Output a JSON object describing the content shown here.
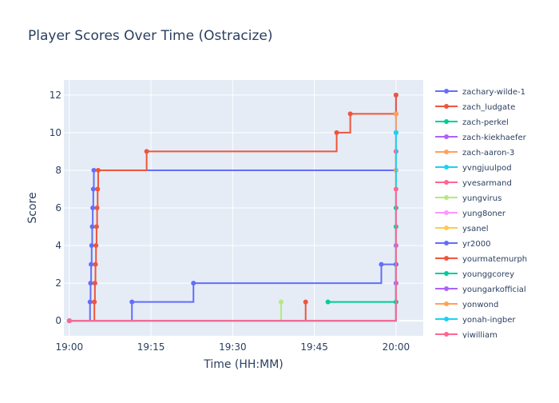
{
  "chart_data": {
    "type": "line",
    "line_shape": "step",
    "title": "Player Scores Over Time (Ostracize)",
    "xlabel": "Time (HH:MM)",
    "ylabel": "Score",
    "x_ticks": [
      "19:00",
      "19:15",
      "19:30",
      "19:45",
      "20:00"
    ],
    "y_ticks": [
      0,
      2,
      4,
      6,
      8,
      10,
      12
    ],
    "xlim": [
      "18:59",
      "20:05"
    ],
    "ylim": [
      -0.8,
      12.8
    ],
    "grid": true,
    "legend_position": "right",
    "background_color": "#e5ecf6",
    "title_color": "#2a3f5f",
    "series": [
      {
        "name": "zachary-wilde-1",
        "color": "#636efa",
        "points": [
          [
            "19:00",
            0
          ],
          [
            "19:03.8",
            1
          ],
          [
            "19:03.9",
            2
          ],
          [
            "19:04.0",
            3
          ],
          [
            "19:04.1",
            4
          ],
          [
            "19:04.2",
            5
          ],
          [
            "19:04.3",
            6
          ],
          [
            "19:04.4",
            7
          ],
          [
            "19:04.5",
            8
          ],
          [
            "20:00",
            8
          ],
          [
            "20:00",
            9
          ],
          [
            "20:00",
            10
          ],
          [
            "20:00",
            11
          ],
          [
            "20:00",
            12
          ]
        ]
      },
      {
        "name": "zach_ludgate",
        "color": "#ef553b",
        "points": [
          [
            "19:00",
            0
          ],
          [
            "19:04.6",
            1
          ],
          [
            "19:04.7",
            2
          ],
          [
            "19:04.8",
            3
          ],
          [
            "19:04.9",
            4
          ],
          [
            "19:05.0",
            5
          ],
          [
            "19:05.1",
            6
          ],
          [
            "19:05.2",
            7
          ],
          [
            "19:05.3",
            8
          ],
          [
            "19:14.2",
            9
          ],
          [
            "19:49.1",
            10
          ],
          [
            "19:51.6",
            11
          ],
          [
            "20:00",
            11
          ],
          [
            "20:00",
            12
          ]
        ]
      },
      {
        "name": "zach-perkel",
        "color": "#00cc96",
        "points": [
          [
            "19:00",
            0
          ],
          [
            "20:00",
            5
          ]
        ]
      },
      {
        "name": "zach-kiekhaefer",
        "color": "#ab63fa",
        "points": [
          [
            "19:00",
            0
          ],
          [
            "20:00",
            4
          ]
        ]
      },
      {
        "name": "zach-aaron-3",
        "color": "#ffa15a",
        "points": [
          [
            "19:00",
            0
          ],
          [
            "20:00",
            8
          ]
        ]
      },
      {
        "name": "yvngjuulpod",
        "color": "#19d3f3",
        "points": [
          [
            "19:00",
            0
          ],
          [
            "20:00",
            3
          ]
        ]
      },
      {
        "name": "yvesarmand",
        "color": "#ff6692",
        "points": [
          [
            "19:00",
            0
          ],
          [
            "20:00",
            9
          ]
        ]
      },
      {
        "name": "yungvirus",
        "color": "#b6e880",
        "points": [
          [
            "19:00",
            0
          ],
          [
            "19:38.9",
            1
          ]
        ]
      },
      {
        "name": "yung8oner",
        "color": "#ff97ff",
        "points": [
          [
            "19:00",
            0
          ],
          [
            "20:00",
            2
          ]
        ]
      },
      {
        "name": "ysanel",
        "color": "#fecb52",
        "points": [
          [
            "19:00",
            0
          ],
          [
            "20:00",
            1
          ]
        ]
      },
      {
        "name": "yr2000",
        "color": "#636efa",
        "points": [
          [
            "19:00",
            0
          ],
          [
            "19:11.5",
            1
          ],
          [
            "19:22.8",
            2
          ],
          [
            "19:57.3",
            3
          ],
          [
            "20:00",
            3
          ]
        ]
      },
      {
        "name": "yourmatemurph",
        "color": "#ef553b",
        "points": [
          [
            "19:00",
            0
          ],
          [
            "19:43.4",
            1
          ]
        ]
      },
      {
        "name": "younggcorey",
        "color": "#00cc96",
        "points": [
          [
            "19:47.5",
            1
          ],
          [
            "20:00",
            1
          ],
          [
            "20:00",
            6
          ]
        ]
      },
      {
        "name": "youngarkofficial",
        "color": "#ab63fa",
        "points": [
          [
            "19:00",
            0
          ],
          [
            "20:00",
            2
          ]
        ]
      },
      {
        "name": "yonwond",
        "color": "#ffa15a",
        "points": [
          [
            "19:00",
            0
          ],
          [
            "20:00",
            11
          ]
        ]
      },
      {
        "name": "yonah-ingber",
        "color": "#19d3f3",
        "points": [
          [
            "19:00",
            0
          ],
          [
            "20:00",
            10
          ]
        ]
      },
      {
        "name": "yiwilliam",
        "color": "#ff6692",
        "points": [
          [
            "19:00",
            0
          ],
          [
            "20:00",
            7
          ]
        ]
      }
    ]
  }
}
